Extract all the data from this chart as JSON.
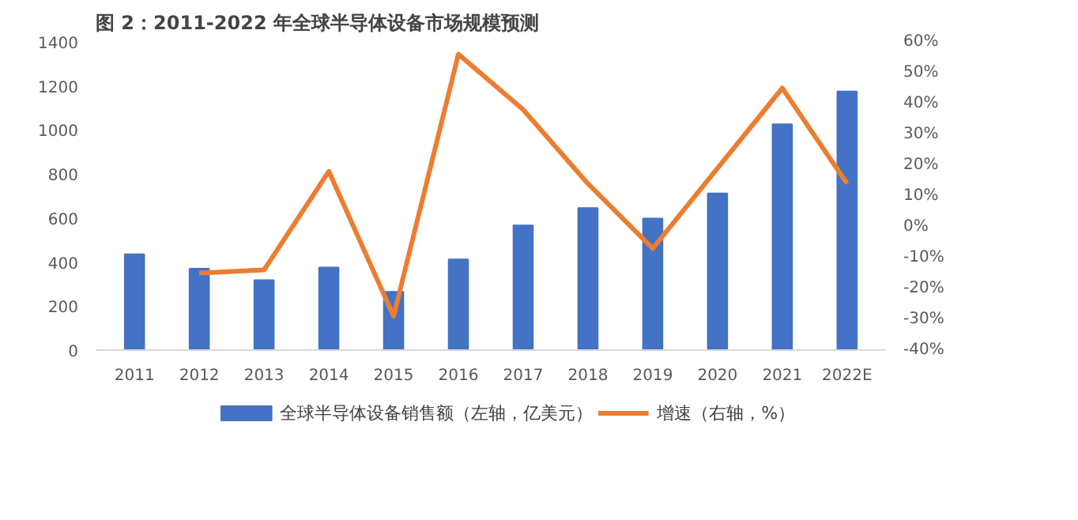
{
  "chart_data": {
    "type": "bar",
    "title": "图 2：2011-2022 年全球半导体设备市场规模预测",
    "categories": [
      "2011",
      "2012",
      "2013",
      "2014",
      "2015",
      "2016",
      "2017",
      "2018",
      "2019",
      "2020",
      "2021",
      "2022E"
    ],
    "series": [
      {
        "name": "全球半导体设备销售额（左轴，亿美元）",
        "color": "#4472c4",
        "values": [
          435,
          370,
          318,
          375,
          265,
          412,
          566,
          645,
          598,
          712,
          1026,
          1175
        ]
      },
      {
        "name": "增速（右轴，%）",
        "color": "#ed7d31",
        "type": "line",
        "axis": "y2",
        "values": [
          null,
          -15,
          -14,
          18,
          -29,
          56,
          38,
          14,
          -7,
          19,
          45,
          14
        ]
      }
    ],
    "ylim": [
      0,
      1400
    ],
    "yticks": [
      0,
      200,
      400,
      600,
      800,
      1000,
      1200,
      1400
    ],
    "y2lim": [
      -40,
      60
    ],
    "y2ticks": [
      {
        "value": -40,
        "label": "-40%"
      },
      {
        "value": -30,
        "label": "-30%"
      },
      {
        "value": -20,
        "label": "-20%"
      },
      {
        "value": -10,
        "label": "-10%"
      },
      {
        "value": 0,
        "label": "0%"
      },
      {
        "value": 10,
        "label": "10%"
      },
      {
        "value": 20,
        "label": "20%"
      },
      {
        "value": 30,
        "label": "30%"
      },
      {
        "value": 40,
        "label": "40%"
      },
      {
        "value": 50,
        "label": "50%"
      },
      {
        "value": 60,
        "label": "60%"
      }
    ],
    "grid": false,
    "legend": "bottom"
  }
}
